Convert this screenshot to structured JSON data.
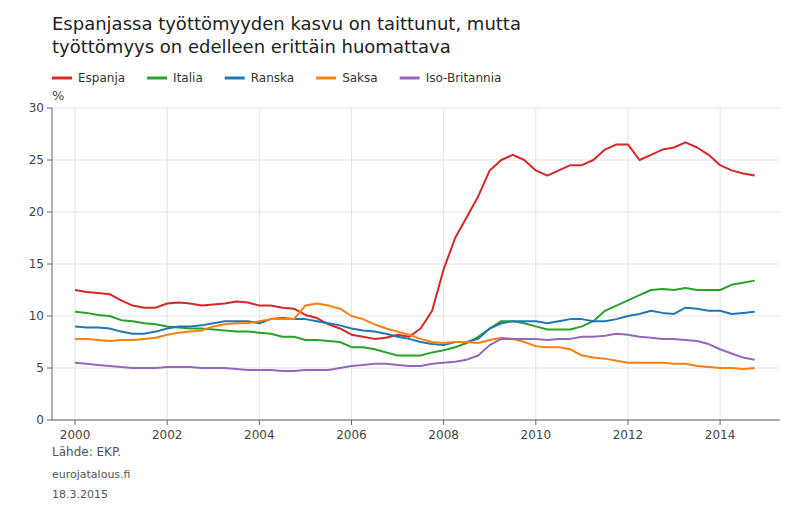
{
  "chart_data": {
    "type": "line",
    "title": "Espanjassa työttömyyden kasvu on taittunut, mutta\ntyöttömyys on edelleen erittäin huomattava",
    "ylabel": "%",
    "annotations": [
      "Lähde: EKP.",
      "eurojatalous.fi",
      "18.3.2015"
    ],
    "xlim": [
      1999.5,
      2015.3
    ],
    "xticks": [
      2000,
      2002,
      2004,
      2006,
      2008,
      2010,
      2012,
      2014
    ],
    "ylim": [
      0,
      30
    ],
    "yticks": [
      0,
      5,
      10,
      15,
      20,
      25,
      30
    ],
    "grid": true,
    "legend": "top",
    "x": [
      2000.0,
      2000.25,
      2000.5,
      2000.75,
      2001.0,
      2001.25,
      2001.5,
      2001.75,
      2002.0,
      2002.25,
      2002.5,
      2002.75,
      2003.0,
      2003.25,
      2003.5,
      2003.75,
      2004.0,
      2004.25,
      2004.5,
      2004.75,
      2005.0,
      2005.25,
      2005.5,
      2005.75,
      2006.0,
      2006.25,
      2006.5,
      2006.75,
      2007.0,
      2007.25,
      2007.5,
      2007.75,
      2008.0,
      2008.25,
      2008.5,
      2008.75,
      2009.0,
      2009.25,
      2009.5,
      2009.75,
      2010.0,
      2010.25,
      2010.5,
      2010.75,
      2011.0,
      2011.25,
      2011.5,
      2011.75,
      2012.0,
      2012.25,
      2012.5,
      2012.75,
      2013.0,
      2013.25,
      2013.5,
      2013.75,
      2014.0,
      2014.25,
      2014.5,
      2014.75
    ],
    "series": [
      {
        "name": "Espanja",
        "color": "#d62728",
        "values": [
          12.5,
          12.3,
          12.2,
          12.1,
          11.5,
          11.0,
          10.8,
          10.8,
          11.2,
          11.3,
          11.2,
          11.0,
          11.1,
          11.2,
          11.4,
          11.3,
          11.0,
          11.0,
          10.8,
          10.7,
          10.1,
          9.8,
          9.2,
          8.8,
          8.2,
          8.0,
          7.8,
          7.9,
          8.2,
          8.0,
          8.8,
          10.5,
          14.5,
          17.5,
          19.5,
          21.5,
          24.0,
          25.0,
          25.5,
          25.0,
          24.0,
          23.5,
          24.0,
          24.5,
          24.5,
          25.0,
          26.0,
          26.5,
          26.5,
          25.0,
          25.5,
          26.0,
          26.2,
          26.7,
          26.2,
          25.5,
          24.5,
          24.0,
          23.7,
          23.5
        ]
      },
      {
        "name": "Italia",
        "color": "#2ca02c",
        "values": [
          10.4,
          10.3,
          10.1,
          10.0,
          9.6,
          9.5,
          9.3,
          9.2,
          9.0,
          8.9,
          8.8,
          8.8,
          8.7,
          8.6,
          8.5,
          8.5,
          8.4,
          8.3,
          8.0,
          8.0,
          7.7,
          7.7,
          7.6,
          7.5,
          7.0,
          7.0,
          6.8,
          6.5,
          6.2,
          6.2,
          6.2,
          6.5,
          6.7,
          7.0,
          7.4,
          8.0,
          8.8,
          9.5,
          9.5,
          9.3,
          9.0,
          8.7,
          8.7,
          8.7,
          9.0,
          9.5,
          10.5,
          11.0,
          11.5,
          12.0,
          12.5,
          12.6,
          12.5,
          12.7,
          12.5,
          12.5,
          12.5,
          13.0,
          13.2,
          13.4
        ]
      },
      {
        "name": "Ranska",
        "color": "#1f77b4",
        "values": [
          9.0,
          8.9,
          8.9,
          8.8,
          8.5,
          8.3,
          8.3,
          8.5,
          8.8,
          9.0,
          9.0,
          9.1,
          9.3,
          9.5,
          9.5,
          9.5,
          9.3,
          9.7,
          9.8,
          9.7,
          9.7,
          9.5,
          9.3,
          9.1,
          8.8,
          8.6,
          8.5,
          8.3,
          8.0,
          7.8,
          7.5,
          7.3,
          7.2,
          7.5,
          7.5,
          7.8,
          8.8,
          9.3,
          9.5,
          9.5,
          9.5,
          9.3,
          9.5,
          9.7,
          9.7,
          9.5,
          9.5,
          9.7,
          10.0,
          10.2,
          10.5,
          10.3,
          10.2,
          10.8,
          10.7,
          10.5,
          10.5,
          10.2,
          10.3,
          10.4
        ]
      },
      {
        "name": "Saksa",
        "color": "#ff7f0e",
        "values": [
          7.8,
          7.8,
          7.7,
          7.6,
          7.7,
          7.7,
          7.8,
          7.9,
          8.2,
          8.4,
          8.5,
          8.6,
          9.0,
          9.2,
          9.3,
          9.3,
          9.5,
          9.7,
          9.7,
          9.7,
          11.0,
          11.2,
          11.0,
          10.7,
          10.0,
          9.7,
          9.2,
          8.8,
          8.5,
          8.2,
          7.8,
          7.5,
          7.4,
          7.5,
          7.5,
          7.4,
          7.7,
          7.9,
          7.8,
          7.5,
          7.1,
          7.0,
          7.0,
          6.8,
          6.2,
          6.0,
          5.9,
          5.7,
          5.5,
          5.5,
          5.5,
          5.5,
          5.4,
          5.4,
          5.2,
          5.1,
          5.0,
          5.0,
          4.9,
          5.0
        ]
      },
      {
        "name": "Iso-Britannia",
        "color": "#9467bd",
        "values": [
          5.5,
          5.4,
          5.3,
          5.2,
          5.1,
          5.0,
          5.0,
          5.0,
          5.1,
          5.1,
          5.1,
          5.0,
          5.0,
          5.0,
          4.9,
          4.8,
          4.8,
          4.8,
          4.7,
          4.7,
          4.8,
          4.8,
          4.8,
          5.0,
          5.2,
          5.3,
          5.4,
          5.4,
          5.3,
          5.2,
          5.2,
          5.4,
          5.5,
          5.6,
          5.8,
          6.2,
          7.2,
          7.8,
          7.8,
          7.8,
          7.8,
          7.7,
          7.8,
          7.8,
          8.0,
          8.0,
          8.1,
          8.3,
          8.2,
          8.0,
          7.9,
          7.8,
          7.8,
          7.7,
          7.6,
          7.3,
          6.8,
          6.4,
          6.0,
          5.8
        ]
      }
    ]
  }
}
